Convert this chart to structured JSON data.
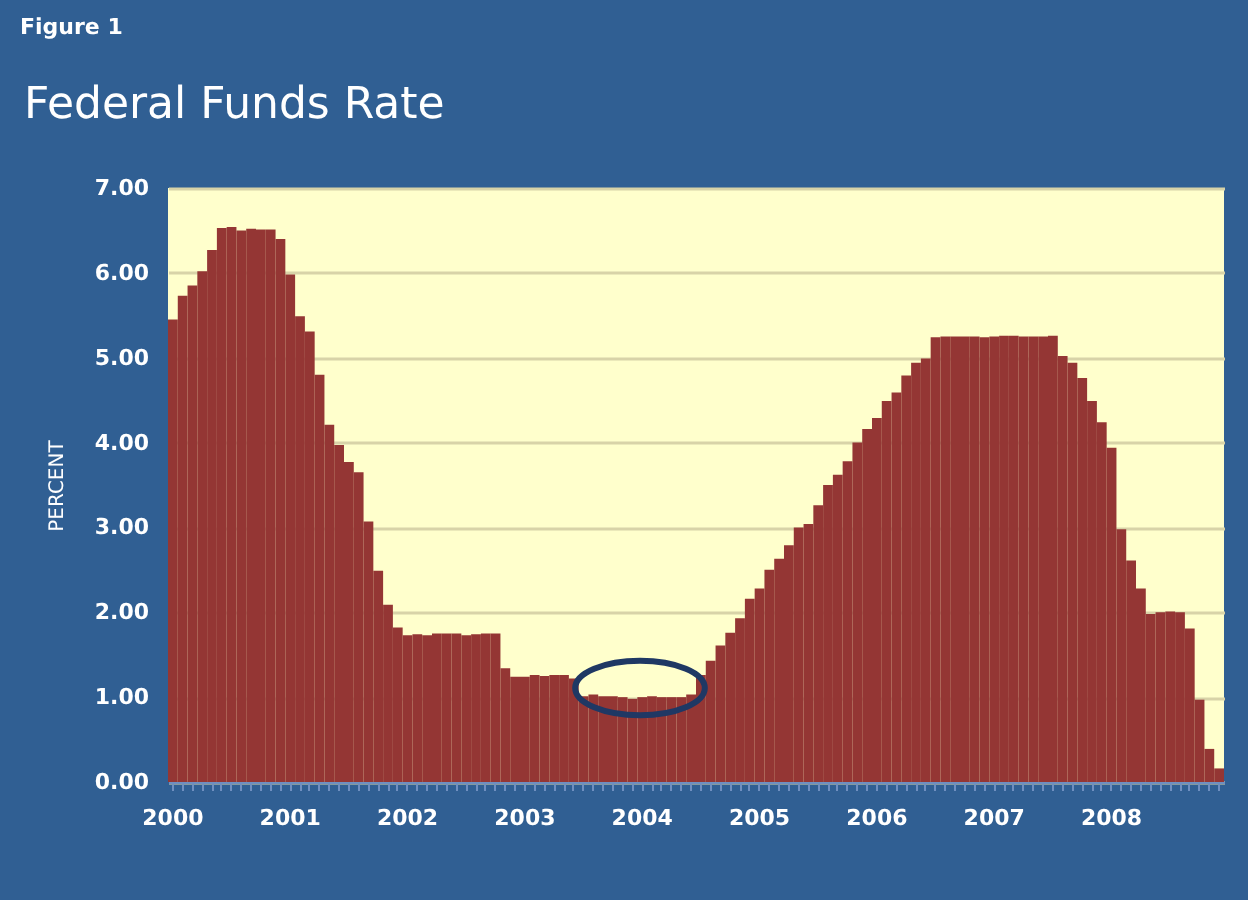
{
  "chart_data": {
    "type": "bar",
    "title": "Federal Funds Rate",
    "ylabel": "PERCENT",
    "annotations": [
      "Figure 1"
    ],
    "categories": [
      "2000",
      null,
      null,
      null,
      null,
      null,
      null,
      null,
      null,
      null,
      null,
      null,
      "2001",
      null,
      null,
      null,
      null,
      null,
      null,
      null,
      null,
      null,
      null,
      null,
      "2002",
      null,
      null,
      null,
      null,
      null,
      null,
      null,
      null,
      null,
      null,
      null,
      "2003",
      null,
      null,
      null,
      null,
      null,
      null,
      null,
      null,
      null,
      null,
      null,
      "2004",
      null,
      null,
      null,
      null,
      null,
      null,
      null,
      null,
      null,
      null,
      null,
      "2005",
      null,
      null,
      null,
      null,
      null,
      null,
      null,
      null,
      null,
      null,
      null,
      "2006",
      null,
      null,
      null,
      null,
      null,
      null,
      null,
      null,
      null,
      null,
      null,
      "2007",
      null,
      null,
      null,
      null,
      null,
      null,
      null,
      null,
      null,
      null,
      null,
      "2008",
      null,
      null,
      null,
      null,
      null,
      null,
      null,
      null,
      null,
      null,
      null
    ],
    "values": [
      5.45,
      5.73,
      5.85,
      6.02,
      6.27,
      6.53,
      6.54,
      6.5,
      6.52,
      6.51,
      6.51,
      6.4,
      5.98,
      5.49,
      5.31,
      4.8,
      4.21,
      3.97,
      3.77,
      3.65,
      3.07,
      2.49,
      2.09,
      1.82,
      1.73,
      1.74,
      1.73,
      1.75,
      1.75,
      1.75,
      1.73,
      1.74,
      1.75,
      1.75,
      1.34,
      1.24,
      1.24,
      1.26,
      1.25,
      1.26,
      1.26,
      1.22,
      1.01,
      1.03,
      1.01,
      1.01,
      1.0,
      0.98,
      1.0,
      1.01,
      1.0,
      1.0,
      1.0,
      1.03,
      1.26,
      1.43,
      1.61,
      1.76,
      1.93,
      2.16,
      2.28,
      2.5,
      2.63,
      2.79,
      3.0,
      3.04,
      3.26,
      3.5,
      3.62,
      3.78,
      4.0,
      4.16,
      4.29,
      4.49,
      4.59,
      4.79,
      4.94,
      4.99,
      5.24,
      5.25,
      5.25,
      5.25,
      5.25,
      5.24,
      5.25,
      5.26,
      5.26,
      5.25,
      5.25,
      5.25,
      5.26,
      5.02,
      4.94,
      4.76,
      4.49,
      4.24,
      3.94,
      2.98,
      2.61,
      2.28,
      1.98,
      2.0,
      2.01,
      2.0,
      1.81,
      0.97,
      0.39,
      0.16
    ],
    "color": "#943634",
    "ylim": [
      0,
      7
    ],
    "yticks": [
      {
        "value": 0,
        "label": "0.00"
      },
      {
        "value": 1,
        "label": "1.00"
      },
      {
        "value": 2,
        "label": "2.00"
      },
      {
        "value": 3,
        "label": "3.00"
      },
      {
        "value": 4,
        "label": "4.00"
      },
      {
        "value": 5,
        "label": "5.00"
      },
      {
        "value": 6,
        "label": "6.00"
      },
      {
        "value": 7,
        "label": "7.00"
      }
    ],
    "grid": "y"
  }
}
